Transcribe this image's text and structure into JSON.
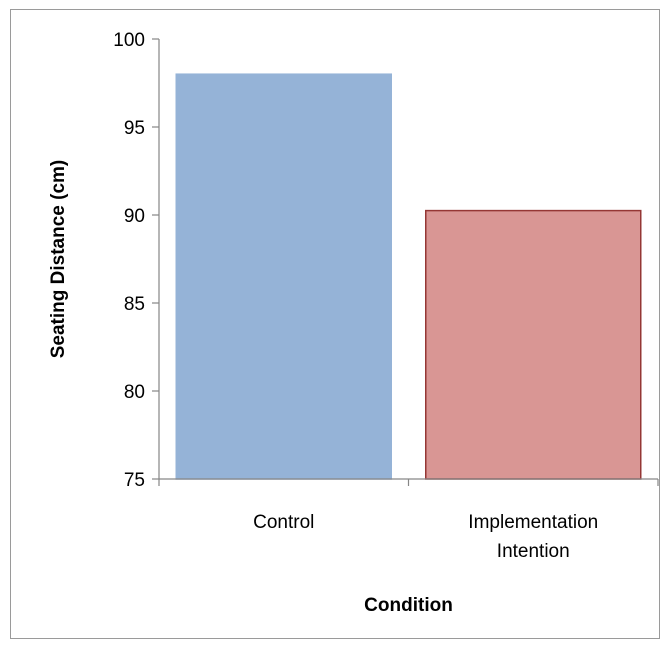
{
  "chart_data": {
    "type": "bar",
    "categories": [
      [
        "Control"
      ],
      [
        "Implementation",
        "Intention"
      ]
    ],
    "values": [
      98.0,
      90.25
    ],
    "title": "",
    "xlabel": "Condition",
    "ylabel": "Seating Distance (cm)",
    "ylim": [
      75,
      100
    ],
    "yticks": [
      75,
      80,
      85,
      90,
      95,
      100
    ],
    "grid": false,
    "legend": "none",
    "colors": {
      "fills": [
        "#95b3d7",
        "#d99694"
      ],
      "borders": [
        "#95b3d7",
        "#953735"
      ],
      "axis": "#868686"
    }
  }
}
